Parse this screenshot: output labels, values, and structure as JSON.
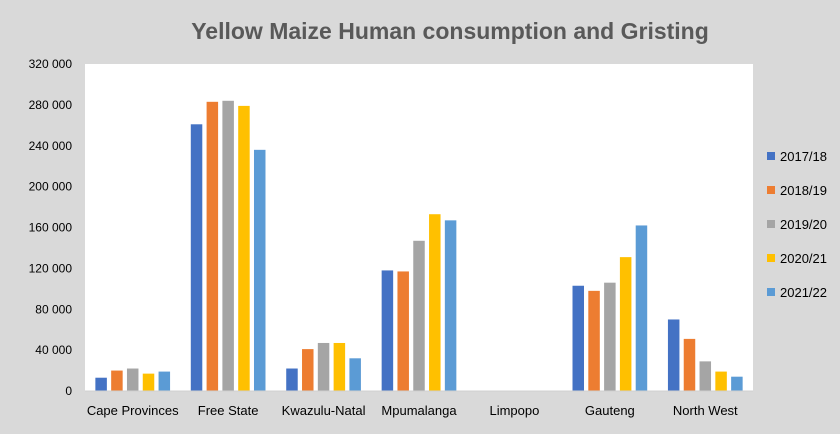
{
  "chart_data": {
    "type": "bar",
    "title": "Yellow Maize Human consumption and Gristing",
    "xlabel": "",
    "ylabel": "",
    "ylim": [
      0,
      320000
    ],
    "yticks": [
      0,
      40000,
      80000,
      120000,
      160000,
      200000,
      240000,
      280000,
      320000
    ],
    "ytick_labels": [
      "0",
      "40 000",
      "80 000",
      "120 000",
      "160 000",
      "200 000",
      "240 000",
      "280 000",
      "320 000"
    ],
    "grid": false,
    "legend_position": "right",
    "categories": [
      "Cape Provinces",
      "Free State",
      "Kwazulu-Natal",
      "Mpumalanga",
      "Limpopo",
      "Gauteng",
      "North West"
    ],
    "series": [
      {
        "name": "2017/18",
        "color": "#4472c4",
        "values": [
          13000,
          261000,
          22000,
          118000,
          0,
          103000,
          70000
        ]
      },
      {
        "name": "2018/19",
        "color": "#ed7d31",
        "values": [
          20000,
          283000,
          41000,
          117000,
          0,
          98000,
          51000
        ]
      },
      {
        "name": "2019/20",
        "color": "#a5a5a5",
        "values": [
          22000,
          284000,
          47000,
          147000,
          0,
          106000,
          29000
        ]
      },
      {
        "name": "2020/21",
        "color": "#ffc000",
        "values": [
          17000,
          279000,
          47000,
          173000,
          0,
          131000,
          19000
        ]
      },
      {
        "name": "2021/22",
        "color": "#5b9bd5",
        "values": [
          19000,
          236000,
          32000,
          167000,
          0,
          162000,
          14000
        ]
      }
    ]
  }
}
